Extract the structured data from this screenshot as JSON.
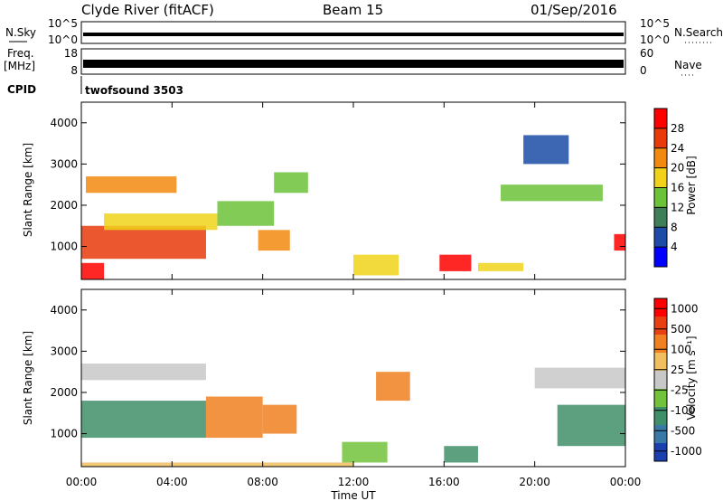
{
  "header": {
    "station": "Clyde River (fitACF)",
    "beam": "Beam 15",
    "date": "01/Sep/2016"
  },
  "panels": {
    "nsky_label": "N.Sky",
    "nsky_ticks": [
      "10^5",
      "10^0"
    ],
    "nsearch_label": "N.Search",
    "nsearch_ticks": [
      "10^5",
      "10^0"
    ],
    "freq_label": "Freq.",
    "freq_unit": "[MHz]",
    "freq_ticks": [
      "18",
      "8"
    ],
    "nave_label": "Nave",
    "nave_ticks": [
      "60",
      "0"
    ],
    "cpid_label": "CPID",
    "cpid_value": "twofsound 3503"
  },
  "chart_data": [
    {
      "type": "heatmap",
      "name": "power-panel",
      "ylabel": "Slant Range [km]",
      "xlabel": "",
      "yticks": [
        "1000",
        "2000",
        "3000",
        "4000"
      ],
      "ylim": [
        200,
        4500
      ],
      "xlim": [
        0,
        24
      ],
      "colorbar_label": "Power [dB]",
      "colorbar_ticks": [
        "4",
        "8",
        "12",
        "16",
        "20",
        "24",
        "28"
      ],
      "colors": [
        "#0000ff",
        "#1c4ca6",
        "#3e7f5a",
        "#6cc23a",
        "#f0d21a",
        "#f28a10",
        "#e83a0a",
        "#ff0000"
      ],
      "regions": [
        {
          "t0": 0.0,
          "t1": 5.5,
          "r0": 700,
          "r1": 1500,
          "level": 6
        },
        {
          "t0": 0.0,
          "t1": 1.0,
          "r0": 200,
          "r1": 600,
          "level": 7
        },
        {
          "t0": 0.2,
          "t1": 4.2,
          "r0": 2300,
          "r1": 2700,
          "level": 5
        },
        {
          "t0": 1.0,
          "t1": 6.0,
          "r0": 1400,
          "r1": 1800,
          "level": 4
        },
        {
          "t0": 6.0,
          "t1": 8.5,
          "r0": 1500,
          "r1": 2100,
          "level": 3
        },
        {
          "t0": 7.8,
          "t1": 9.2,
          "r0": 900,
          "r1": 1400,
          "level": 5
        },
        {
          "t0": 8.5,
          "t1": 10.0,
          "r0": 2300,
          "r1": 2800,
          "level": 3
        },
        {
          "t0": 12.0,
          "t1": 14.0,
          "r0": 300,
          "r1": 800,
          "level": 4
        },
        {
          "t0": 15.8,
          "t1": 17.2,
          "r0": 400,
          "r1": 800,
          "level": 7
        },
        {
          "t0": 17.5,
          "t1": 19.5,
          "r0": 400,
          "r1": 600,
          "level": 4
        },
        {
          "t0": 18.5,
          "t1": 23.0,
          "r0": 2100,
          "r1": 2500,
          "level": 3
        },
        {
          "t0": 19.5,
          "t1": 21.5,
          "r0": 3000,
          "r1": 3700,
          "level": 1
        },
        {
          "t0": 23.5,
          "t1": 24.0,
          "r0": 900,
          "r1": 1300,
          "level": 7
        }
      ]
    },
    {
      "type": "heatmap",
      "name": "velocity-panel",
      "ylabel": "Slant Range [km]",
      "xlabel": "Time UT",
      "yticks": [
        "1000",
        "2000",
        "3000",
        "4000"
      ],
      "ylim": [
        200,
        4500
      ],
      "xlim": [
        0,
        24
      ],
      "xticks": [
        "00:00",
        "04:00",
        "08:00",
        "12:00",
        "16:00",
        "20:00",
        "00:00"
      ],
      "colorbar_label": "Velocity [m s⁻¹]",
      "colorbar_ticks": [
        "1000",
        "500",
        "100",
        "25",
        "-25",
        "-100",
        "-500",
        "-1000"
      ],
      "colors": [
        "#1c3fb0",
        "#3a78a6",
        "#3f8f6a",
        "#72c23c",
        "#c8c8c8",
        "#f0c060",
        "#f08020",
        "#e84010",
        "#ff0000"
      ],
      "regions": [
        {
          "t0": 0.0,
          "t1": 5.5,
          "r0": 2300,
          "r1": 2700,
          "level": 4
        },
        {
          "t0": 0.0,
          "t1": 5.5,
          "r0": 900,
          "r1": 1800,
          "level": 2
        },
        {
          "t0": 5.5,
          "t1": 8.0,
          "r0": 900,
          "r1": 1900,
          "level": 6
        },
        {
          "t0": 8.0,
          "t1": 9.5,
          "r0": 1000,
          "r1": 1700,
          "level": 6
        },
        {
          "t0": 13.0,
          "t1": 14.5,
          "r0": 1800,
          "r1": 2500,
          "level": 6
        },
        {
          "t0": 11.5,
          "t1": 13.5,
          "r0": 300,
          "r1": 800,
          "level": 3
        },
        {
          "t0": 16.0,
          "t1": 17.5,
          "r0": 300,
          "r1": 700,
          "level": 2
        },
        {
          "t0": 20.0,
          "t1": 24.0,
          "r0": 2100,
          "r1": 2600,
          "level": 4
        },
        {
          "t0": 21.0,
          "t1": 24.0,
          "r0": 700,
          "r1": 1700,
          "level": 2
        },
        {
          "t0": 0.0,
          "t1": 12.0,
          "r0": 200,
          "r1": 300,
          "level": 5
        }
      ]
    }
  ]
}
